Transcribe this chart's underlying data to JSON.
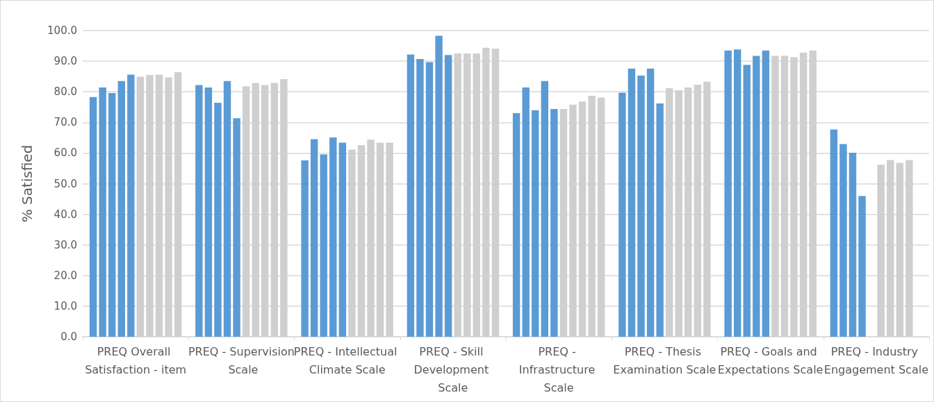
{
  "chart_data": {
    "type": "bar",
    "ylabel": "% Satisfied",
    "categories": [
      "PREQ Overall Satisfaction - item",
      "PREQ - Supervision Scale",
      "PREQ - Intellectual Climate Scale",
      "PREQ - Skill Development Scale",
      "PREQ - Infrastructure Scale",
      "PREQ - Thesis Examination Scale",
      "PREQ - Goals and Expectations Scale",
      "PREQ - Industry Engagement Scale"
    ],
    "series": [
      {
        "color": "#5b9bd5",
        "values": [
          78.3,
          82.2,
          57.6,
          92.2,
          73.0,
          79.7,
          93.5,
          67.7
        ]
      },
      {
        "color": "#5b9bd5",
        "values": [
          81.4,
          81.4,
          64.5,
          90.7,
          81.4,
          87.6,
          93.8,
          62.9
        ]
      },
      {
        "color": "#5b9bd5",
        "values": [
          79.6,
          76.4,
          59.5,
          89.7,
          74.0,
          85.3,
          88.8,
          60.1
        ]
      },
      {
        "color": "#5b9bd5",
        "values": [
          83.5,
          83.5,
          65.1,
          98.3,
          83.5,
          87.6,
          91.7,
          46.0
        ]
      },
      {
        "color": "#5b9bd5",
        "values": [
          85.6,
          71.4,
          63.4,
          92.0,
          74.4,
          76.2,
          93.5,
          null
        ]
      },
      {
        "color": "#d0cfd0",
        "values": [
          84.9,
          81.8,
          61.1,
          92.5,
          74.4,
          81.2,
          91.7,
          56.2
        ]
      },
      {
        "color": "#d0cfd0",
        "values": [
          85.5,
          82.9,
          62.6,
          92.5,
          75.8,
          80.5,
          91.8,
          57.7
        ]
      },
      {
        "color": "#d0cfd0",
        "values": [
          85.6,
          82.2,
          64.4,
          92.5,
          76.8,
          81.4,
          91.3,
          56.8
        ]
      },
      {
        "color": "#d0cfd0",
        "values": [
          84.7,
          82.9,
          63.4,
          94.4,
          78.7,
          82.3,
          92.8,
          57.7
        ]
      },
      {
        "color": "#d0cfd0",
        "values": [
          86.4,
          84.1,
          63.4,
          94.1,
          78.1,
          83.3,
          93.5,
          null
        ]
      }
    ],
    "ylim": [
      0,
      100
    ],
    "yticks": [
      {
        "value": 0,
        "label": "0.0"
      },
      {
        "value": 10,
        "label": "10.0"
      },
      {
        "value": 20,
        "label": "20.0"
      },
      {
        "value": 30,
        "label": "30.0"
      },
      {
        "value": 40,
        "label": "40.0"
      },
      {
        "value": 50,
        "label": "50.0"
      },
      {
        "value": 60,
        "label": "60.0"
      },
      {
        "value": 70,
        "label": "70.0"
      },
      {
        "value": 80,
        "label": "80.0"
      },
      {
        "value": 90,
        "label": "90.0"
      },
      {
        "value": 100,
        "label": "100.0"
      }
    ],
    "grid": "y"
  }
}
